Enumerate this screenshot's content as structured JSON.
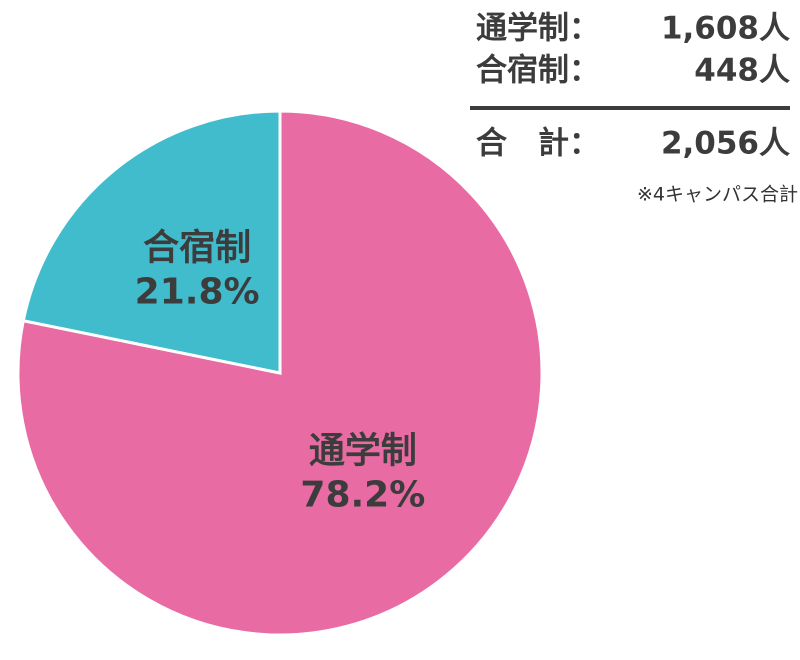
{
  "chart_data": {
    "type": "pie",
    "categories": [
      "通学制",
      "合宿制"
    ],
    "values": [
      78.2,
      21.8
    ],
    "value_labels": [
      "78.2%",
      "21.8%"
    ],
    "colors": [
      "#e96ba3",
      "#41bccc"
    ],
    "summary": [
      {
        "label": "通学制：",
        "value": "1,608人"
      },
      {
        "label": "合宿制：",
        "value": "448人"
      },
      {
        "label": "合　計：",
        "value": "2,056人"
      }
    ],
    "note": "※4キャンパス合計"
  }
}
